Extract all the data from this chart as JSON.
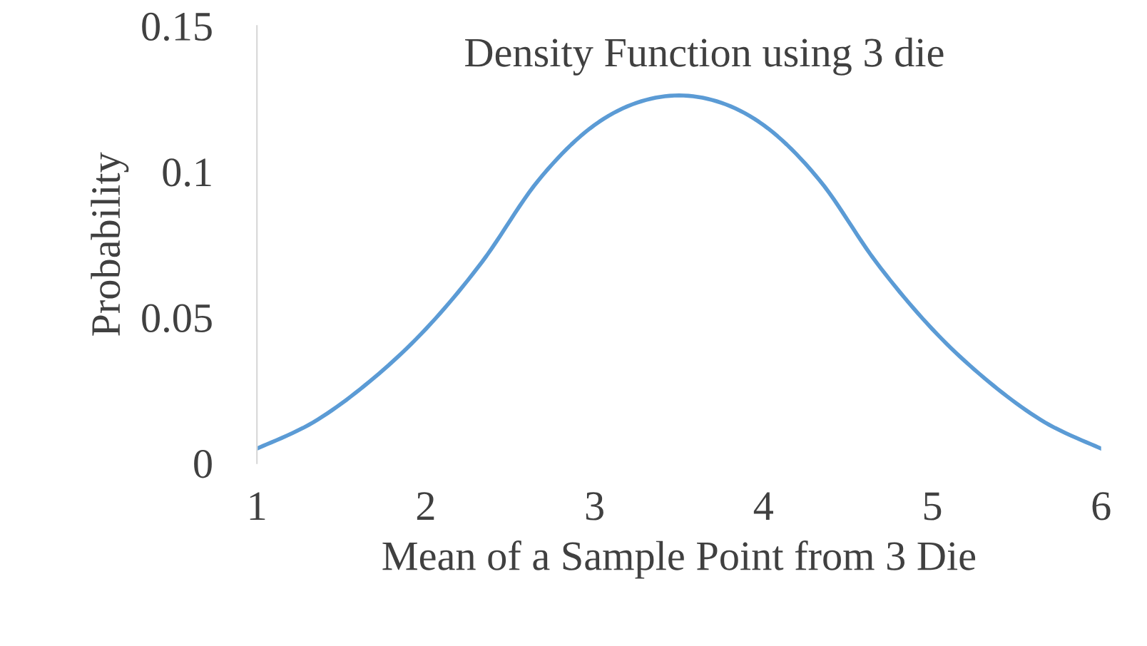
{
  "chart_data": {
    "type": "line",
    "title": "Density Function using 3 die",
    "xlabel": "Mean of a Sample Point from 3 Die",
    "ylabel": "Probability",
    "series": [
      {
        "color": "#5b9bd5",
        "x": [
          1,
          1.333,
          1.667,
          2,
          2.333,
          2.667,
          3,
          3.333,
          3.667,
          4,
          4.333,
          4.667,
          5,
          5.333,
          5.667,
          6
        ],
        "values": [
          0.005,
          0.014,
          0.028,
          0.046,
          0.069,
          0.097,
          0.116,
          0.125,
          0.125,
          0.116,
          0.097,
          0.069,
          0.046,
          0.028,
          0.014,
          0.005
        ]
      }
    ],
    "xlim": [
      1,
      6
    ],
    "xticks": [
      1,
      2,
      3,
      4,
      5,
      6
    ],
    "ylim": [
      0,
      0.15
    ],
    "yticks": [
      0,
      0.05,
      0.1,
      0.15
    ],
    "grid": false,
    "legend": false,
    "marker": "none",
    "line_style": "solid"
  }
}
